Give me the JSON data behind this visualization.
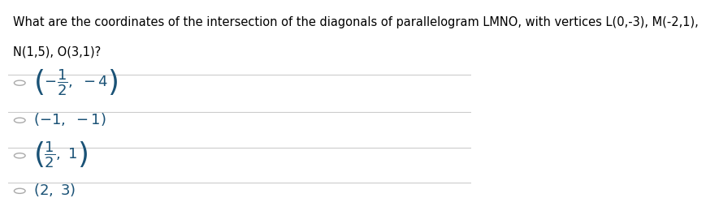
{
  "question": "What are the coordinates of the intersection of the diagonals of parallelogram LMNO, with vertices L(0,-3), M(-2,1),\nN(1,5), O(3,1)?",
  "options": [
    "($-\\frac{1}{2}$, $-4$)",
    "($-1$, $-1$)",
    "($\\frac{1}{2}$, $1$)",
    "($2$, $3$)"
  ],
  "option_texts_matplotlib": [
    "$\\left(-\\dfrac{1}{2},\\ -4\\right)$",
    "$\\left(-1,\\ -1\\right)$",
    "$\\left(\\dfrac{1}{2},\\ 1\\right)$",
    "$\\left(2,\\ 3\\right)$"
  ],
  "background_color": "#ffffff",
  "text_color": "#1a5276",
  "question_color": "#000000",
  "divider_color": "#cccccc",
  "radio_color": "#aaaaaa",
  "font_size_question": 10.5,
  "font_size_options": 13
}
